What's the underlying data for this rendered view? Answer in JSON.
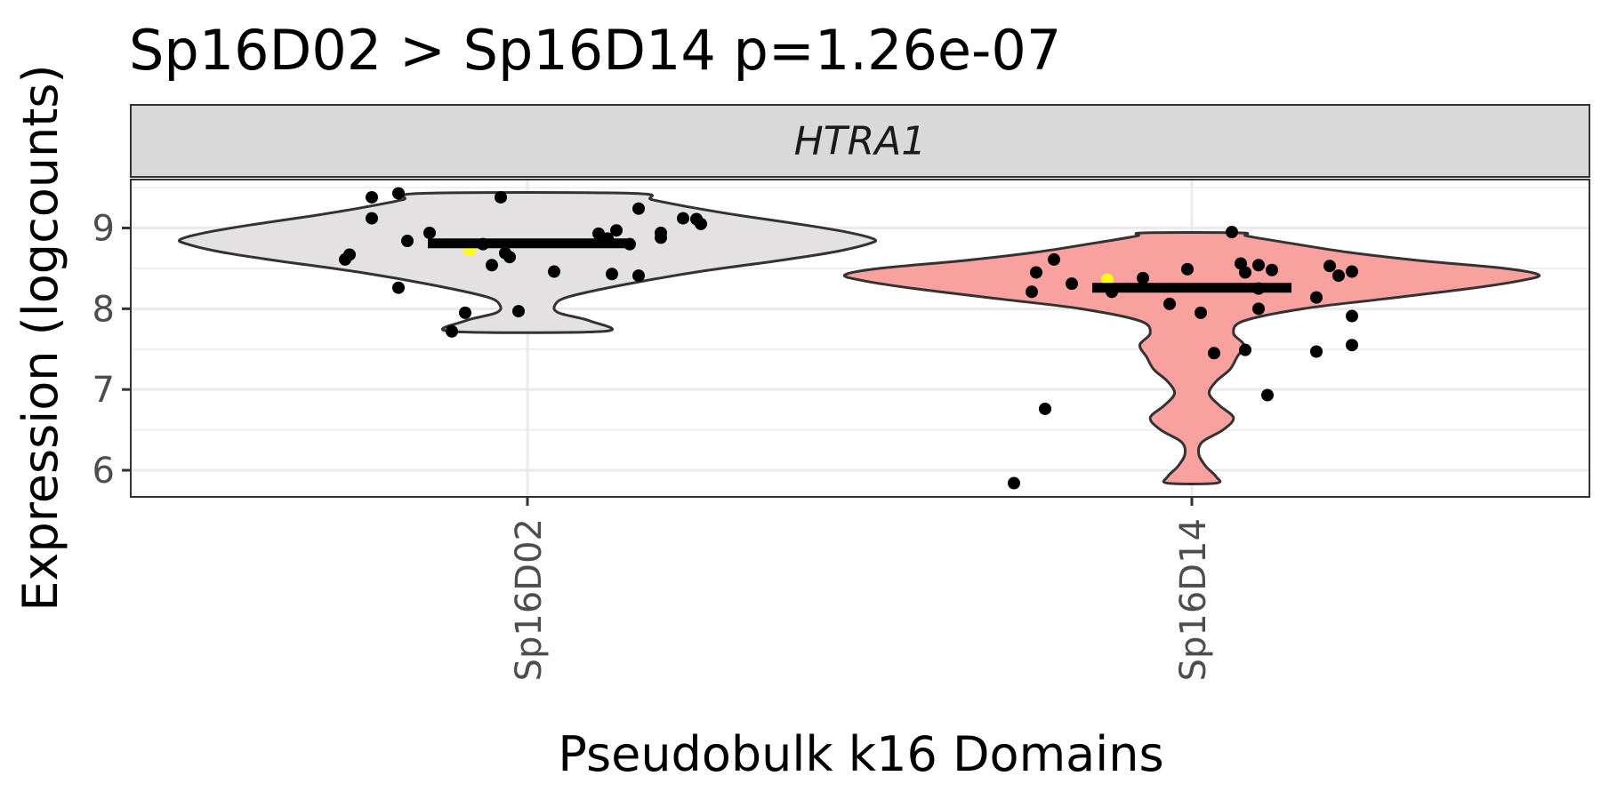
{
  "chart_data": {
    "type": "violin",
    "title": "Sp16D02 > Sp16D14 p=1.26e-07",
    "facet_label": "HTRA1",
    "xlabel": "Pseudobulk k16 Domains",
    "ylabel": "Expression (logcounts)",
    "categories": [
      "Sp16D02",
      "Sp16D14"
    ],
    "ylim": [
      5.67,
      9.6
    ],
    "yticks": [
      6,
      7,
      8,
      9
    ],
    "grid": true,
    "colors": {
      "Sp16D02": "#e3e1e2",
      "Sp16D14": "#f8a19f",
      "points": "#000000",
      "highlight": "#ffff00",
      "median": "#000000",
      "violin_outline": "#333333",
      "strip_bg": "#d9d9d9"
    },
    "groups": [
      {
        "name": "Sp16D02",
        "median": 8.81,
        "violin": {
          "min": 7.72,
          "max": 9.43,
          "profile": [
            [
              7.72,
              0.22
            ],
            [
              7.85,
              0.18
            ],
            [
              7.95,
              0.09
            ],
            [
              8.05,
              0.08
            ],
            [
              8.15,
              0.12
            ],
            [
              8.3,
              0.28
            ],
            [
              8.45,
              0.48
            ],
            [
              8.6,
              0.73
            ],
            [
              8.7,
              0.88
            ],
            [
              8.8,
              0.98
            ],
            [
              8.86,
              1.0
            ],
            [
              8.95,
              0.92
            ],
            [
              9.05,
              0.78
            ],
            [
              9.15,
              0.62
            ],
            [
              9.25,
              0.48
            ],
            [
              9.35,
              0.36
            ],
            [
              9.43,
              0.3
            ]
          ]
        },
        "points": [
          [
            -0.35,
            9.38
          ],
          [
            -0.29,
            9.43
          ],
          [
            -0.06,
            9.38
          ],
          [
            -0.35,
            9.12
          ],
          [
            -0.22,
            8.94
          ],
          [
            0.25,
            9.24
          ],
          [
            0.35,
            9.12
          ],
          [
            0.38,
            9.11
          ],
          [
            0.39,
            9.05
          ],
          [
            0.3,
            8.94
          ],
          [
            0.3,
            8.88
          ],
          [
            0.16,
            8.93
          ],
          [
            0.2,
            8.97
          ],
          [
            0.18,
            8.87
          ],
          [
            0.23,
            8.8
          ],
          [
            -0.27,
            8.84
          ],
          [
            -0.1,
            8.8
          ],
          [
            -0.4,
            8.67
          ],
          [
            -0.41,
            8.61
          ],
          [
            -0.05,
            8.69
          ],
          [
            -0.04,
            8.64
          ],
          [
            -0.08,
            8.54
          ],
          [
            -0.29,
            8.26
          ],
          [
            0.06,
            8.46
          ],
          [
            0.19,
            8.43
          ],
          [
            0.25,
            8.41
          ],
          [
            -0.14,
            7.95
          ],
          [
            -0.02,
            7.97
          ],
          [
            -0.17,
            7.72
          ]
        ],
        "highlight_points": [
          [
            -0.13,
            8.73
          ]
        ]
      },
      {
        "name": "Sp16D14",
        "median": 8.26,
        "violin": {
          "min": 5.84,
          "max": 8.94,
          "profile": [
            [
              5.84,
              0.07
            ],
            [
              5.92,
              0.07
            ],
            [
              6.05,
              0.04
            ],
            [
              6.2,
              0.02
            ],
            [
              6.35,
              0.03
            ],
            [
              6.5,
              0.09
            ],
            [
              6.65,
              0.12
            ],
            [
              6.8,
              0.08
            ],
            [
              6.95,
              0.05
            ],
            [
              7.1,
              0.07
            ],
            [
              7.25,
              0.11
            ],
            [
              7.4,
              0.13
            ],
            [
              7.55,
              0.15
            ],
            [
              7.7,
              0.12
            ],
            [
              7.85,
              0.15
            ],
            [
              8.0,
              0.32
            ],
            [
              8.12,
              0.55
            ],
            [
              8.25,
              0.8
            ],
            [
              8.35,
              0.95
            ],
            [
              8.42,
              1.0
            ],
            [
              8.5,
              0.9
            ],
            [
              8.6,
              0.65
            ],
            [
              8.7,
              0.45
            ],
            [
              8.8,
              0.3
            ],
            [
              8.9,
              0.16
            ],
            [
              8.94,
              0.14
            ]
          ]
        },
        "points": [
          [
            -0.35,
            8.45
          ],
          [
            -0.36,
            8.21
          ],
          [
            -0.31,
            8.61
          ],
          [
            -0.27,
            8.31
          ],
          [
            -0.18,
            8.21
          ],
          [
            -0.11,
            8.38
          ],
          [
            -0.05,
            8.06
          ],
          [
            -0.01,
            8.49
          ],
          [
            0.02,
            7.95
          ],
          [
            0.09,
            8.95
          ],
          [
            0.11,
            8.56
          ],
          [
            0.12,
            8.45
          ],
          [
            0.15,
            8.54
          ],
          [
            0.18,
            8.48
          ],
          [
            0.15,
            8.25
          ],
          [
            0.15,
            8.0
          ],
          [
            0.05,
            7.45
          ],
          [
            0.12,
            7.49
          ],
          [
            0.17,
            6.93
          ],
          [
            0.31,
            8.53
          ],
          [
            0.33,
            8.41
          ],
          [
            0.36,
            8.46
          ],
          [
            0.28,
            8.14
          ],
          [
            0.36,
            7.91
          ],
          [
            0.28,
            7.47
          ],
          [
            0.36,
            7.55
          ],
          [
            -0.33,
            6.76
          ],
          [
            -0.4,
            5.84
          ]
        ],
        "highlight_points": [
          [
            -0.19,
            8.36
          ]
        ]
      }
    ]
  }
}
